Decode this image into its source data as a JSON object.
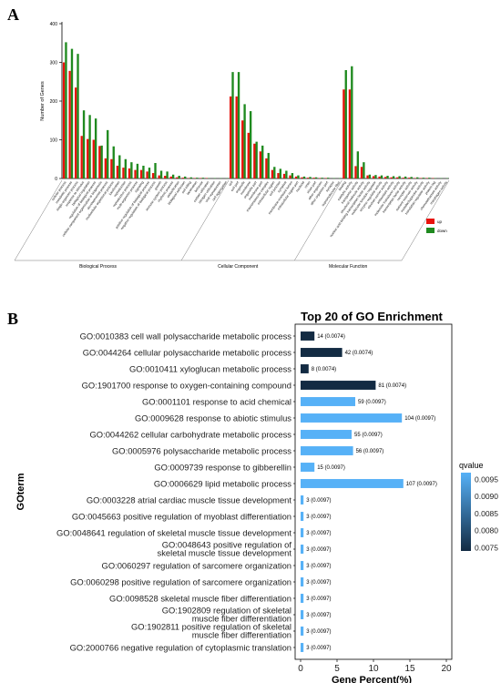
{
  "panel_a_letter": "A",
  "panel_b_letter": "B",
  "colors": {
    "up": "#e8120b",
    "down": "#1f8a1f",
    "qlow": "#132b43",
    "qhigh": "#56b1f7"
  },
  "chart_data": [
    {
      "type": "bar",
      "title": "",
      "xlabel": "",
      "ylabel": "Number of Genes",
      "ylim": [
        0,
        400
      ],
      "yticks": [
        0,
        100,
        200,
        300,
        400
      ],
      "grid": false,
      "legend_position": "right",
      "legend": [
        "up",
        "down"
      ],
      "groups": [
        {
          "label": "Biological Process",
          "start": 0,
          "count": 28
        },
        {
          "label": "Cellular Component",
          "start": 28,
          "count": 19
        },
        {
          "label": "Molecular Function",
          "start": 47,
          "count": 18
        }
      ],
      "categories": [
        "cellular process",
        "metabolic process",
        "single-organism process",
        "response to stimulus",
        "biological regulation",
        "regulation of biological process",
        "cellular component organization or biogenesis",
        "developmental process",
        "multicellular organismal process",
        "localization",
        "reproduction",
        "reproductive process",
        "multi-organism process",
        "signaling",
        "positive regulation of biological process",
        "negative regulation of biological process",
        "growth",
        "immune system process",
        "rhythmic process",
        "detoxification",
        "biological adhesion",
        "cell killing",
        "locomotion",
        "behavior",
        "carbon utilization",
        "nitrogen utilization",
        "viral reproduction",
        "cell aggregation",
        "cell",
        "cell part",
        "organelle",
        "membrane",
        "organelle part",
        "membrane part",
        "macromolecular complex",
        "extracellular region",
        "cell junction",
        "symplast",
        "membrane-enclosed lumen",
        "extracellular region part",
        "nucleoid",
        "virion",
        "virion part",
        "other organism",
        "other organism part",
        "synapse",
        "supramolecular fiber",
        "binding",
        "catalytic activity",
        "transporter activity",
        "structural molecule activity",
        "nucleic acid binding transcription factor activity",
        "molecular function regulator",
        "enzyme regulator activity",
        "electron carrier activity",
        "antioxidant activity",
        "molecular transducer activity",
        "transcription factor activity",
        "receptor activity",
        "nutrient reservoir activity",
        "metallochaperone activity",
        "translation regulator activity",
        "protein tag",
        "chemoattractant activity",
        "morphogen activity"
      ],
      "series": [
        {
          "name": "up",
          "values": [
            300,
            278,
            235,
            110,
            102,
            100,
            84,
            52,
            50,
            33,
            28,
            26,
            22,
            22,
            18,
            14,
            8,
            7,
            5,
            3,
            2,
            1,
            1,
            1,
            1,
            0,
            0,
            0,
            212,
            212,
            150,
            118,
            90,
            70,
            52,
            22,
            14,
            12,
            8,
            5,
            3,
            2,
            2,
            1,
            1,
            0,
            0,
            230,
            230,
            32,
            30,
            8,
            6,
            5,
            4,
            3,
            3,
            2,
            2,
            1,
            1,
            1,
            1,
            0,
            0
          ]
        },
        {
          "name": "down",
          "values": [
            352,
            335,
            322,
            176,
            164,
            155,
            85,
            125,
            83,
            60,
            50,
            42,
            38,
            33,
            28,
            40,
            20,
            18,
            10,
            7,
            5,
            3,
            2,
            2,
            1,
            1,
            1,
            1,
            275,
            275,
            192,
            174,
            95,
            85,
            66,
            30,
            25,
            20,
            14,
            8,
            5,
            4,
            3,
            2,
            2,
            1,
            1,
            280,
            290,
            70,
            42,
            10,
            9,
            8,
            7,
            6,
            6,
            5,
            4,
            3,
            2,
            2,
            1,
            1,
            1
          ]
        }
      ]
    },
    {
      "type": "bar",
      "orientation": "horizontal",
      "title": "Top 20 of GO Enrichment",
      "xlabel": "Gene Percent(%)",
      "ylabel": "GOterm",
      "xlim": [
        0,
        20
      ],
      "xticks": [
        "0",
        "5",
        "10",
        "15",
        "20"
      ],
      "legend_title": "qvalue",
      "legend_ticks": [
        "0.0095",
        "0.0090",
        "0.0085",
        "0.0080",
        "0.0075"
      ],
      "categories": [
        "GO:0010383 cell wall polysaccharide metabolic process",
        "GO:0044264 cellular polysaccharide metabolic process",
        "GO:0010411 xyloglucan metabolic process",
        "GO:1901700 response to oxygen-containing compound",
        "GO:0001101 response to acid chemical",
        "GO:0009628 response to abiotic stimulus",
        "GO:0044262 cellular carbohydrate metabolic process",
        "GO:0005976 polysaccharide metabolic process",
        "GO:0009739 response to gibberellin",
        "GO:0006629 lipid metabolic process",
        "GO:0003228 atrial cardiac muscle tissue development",
        "GO:0045663 positive regulation of myoblast differentiation",
        "GO:0048641 regulation of skeletal muscle tissue development",
        "GO:0048643 positive regulation of skeletal muscle tissue development",
        "GO:0060297 regulation of sarcomere organization",
        "GO:0060298 positive regulation of sarcomere organization",
        "GO:0098528 skeletal muscle fiber differentiation",
        "GO:1902809 regulation of skeletal muscle fiber differentiation",
        "GO:1902811 positive regulation of skeletal muscle fiber differentiation",
        "GO:2000766 negative regulation of cytoplasmic translation"
      ],
      "label_lines": [
        [
          "GO:0010383 cell wall polysaccharide metabolic process"
        ],
        [
          "GO:0044264 cellular polysaccharide metabolic process"
        ],
        [
          "GO:0010411 xyloglucan metabolic process"
        ],
        [
          "GO:1901700 response to oxygen-containing compound"
        ],
        [
          "GO:0001101 response to acid chemical"
        ],
        [
          "GO:0009628 response to abiotic stimulus"
        ],
        [
          "GO:0044262 cellular carbohydrate metabolic process"
        ],
        [
          "GO:0005976 polysaccharide metabolic process"
        ],
        [
          "GO:0009739 response to gibberellin"
        ],
        [
          "GO:0006629 lipid metabolic process"
        ],
        [
          "GO:0003228 atrial cardiac muscle tissue development"
        ],
        [
          "GO:0045663 positive regulation of myoblast differentiation"
        ],
        [
          "GO:0048641 regulation of skeletal muscle tissue development"
        ],
        [
          "GO:0048643 positive regulation of",
          "skeletal muscle tissue development"
        ],
        [
          "GO:0060297 regulation of sarcomere organization"
        ],
        [
          "GO:0060298 positive regulation of sarcomere organization"
        ],
        [
          "GO:0098528 skeletal muscle fiber differentiation"
        ],
        [
          "GO:1902809 regulation of skeletal",
          "muscle fiber differentiation"
        ],
        [
          "GO:1902811 positive regulation of skeletal",
          "muscle fiber differentiation"
        ],
        [
          "GO:2000766 negative regulation of cytoplasmic translation"
        ]
      ],
      "values": [
        1.9,
        5.7,
        1.1,
        10.3,
        7.5,
        13.9,
        7.0,
        7.2,
        1.9,
        14.1,
        0.4,
        0.4,
        0.4,
        0.4,
        0.4,
        0.4,
        0.4,
        0.4,
        0.4,
        0.4
      ],
      "qvalues": [
        0.0074,
        0.0074,
        0.0074,
        0.0074,
        0.0097,
        0.0097,
        0.0097,
        0.0097,
        0.0097,
        0.0097,
        0.0097,
        0.0097,
        0.0097,
        0.0097,
        0.0097,
        0.0097,
        0.0097,
        0.0097,
        0.0097,
        0.0097
      ],
      "bar_labels": [
        "14 (0.0074)",
        "42 (0.0074)",
        "8 (0.0074)",
        "81 (0.0074)",
        "59 (0.0097)",
        "104 (0.0097)",
        "55 (0.0097)",
        "56 (0.0097)",
        "15 (0.0097)",
        "107 (0.0097)",
        "3 (0.0097)",
        "3 (0.0097)",
        "3 (0.0097)",
        "3 (0.0097)",
        "3 (0.0097)",
        "3 (0.0097)",
        "3 (0.0097)",
        "3 (0.0097)",
        "3 (0.0097)",
        "3 (0.0097)"
      ]
    }
  ]
}
